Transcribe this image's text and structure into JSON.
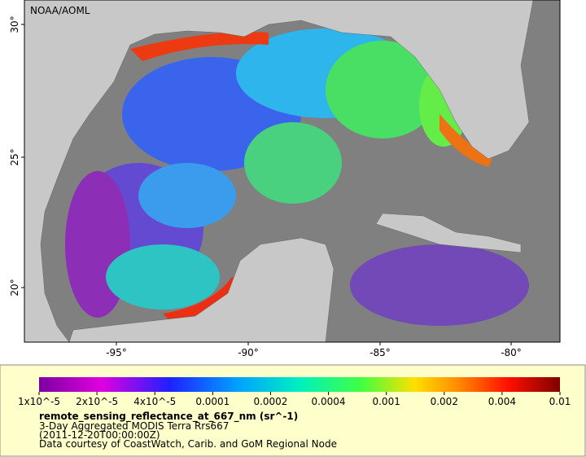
{
  "credit": "NOAA/AOML",
  "map": {
    "lat_labels": [
      "30°",
      "25°",
      "20°"
    ],
    "lon_labels": [
      "-95°",
      "-90°",
      "-85°",
      "-80°"
    ]
  },
  "legend": {
    "tick_labels": [
      "1x10^-5",
      "2x10^-5",
      "4x10^-5",
      "0.0001",
      "0.0002",
      "0.0004",
      "0.001",
      "0.002",
      "0.004",
      "0.01"
    ],
    "title": "remote_sensing_reflectance_at_667_nm (sr^-1)",
    "lines": [
      "3-Day Aggregated MODIS Terra Rrs667",
      "(2011-12-20T00:00:00Z)",
      "Data courtesy of CoastWatch, Carib. and GoM Regional Node"
    ]
  }
}
